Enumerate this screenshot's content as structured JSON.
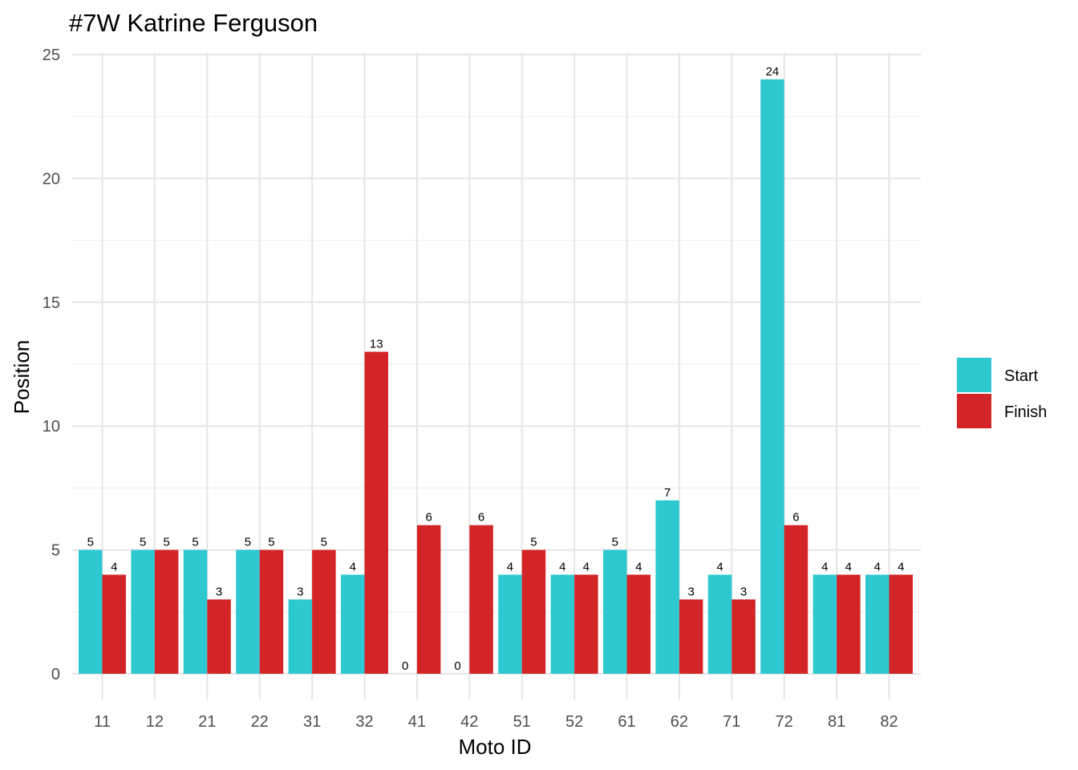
{
  "chart_data": {
    "type": "bar",
    "title": "#7W Katrine Ferguson",
    "xlabel": "Moto ID",
    "ylabel": "Position",
    "categories": [
      "11",
      "12",
      "21",
      "22",
      "31",
      "32",
      "41",
      "42",
      "51",
      "52",
      "61",
      "62",
      "71",
      "72",
      "81",
      "82"
    ],
    "series": [
      {
        "name": "Start",
        "color": "#2EC8D1",
        "values": [
          5,
          5,
          5,
          5,
          3,
          4,
          0,
          0,
          4,
          4,
          5,
          7,
          4,
          24,
          4,
          4
        ]
      },
      {
        "name": "Finish",
        "color": "#D32527",
        "values": [
          4,
          5,
          3,
          5,
          5,
          13,
          6,
          6,
          5,
          4,
          4,
          3,
          3,
          6,
          4,
          4
        ]
      }
    ],
    "ylim": [
      0,
      25
    ],
    "yticks": [
      "0",
      "5",
      "10",
      "15",
      "20",
      "25"
    ],
    "grid": true,
    "legend_position": "right",
    "data_labels": true
  }
}
